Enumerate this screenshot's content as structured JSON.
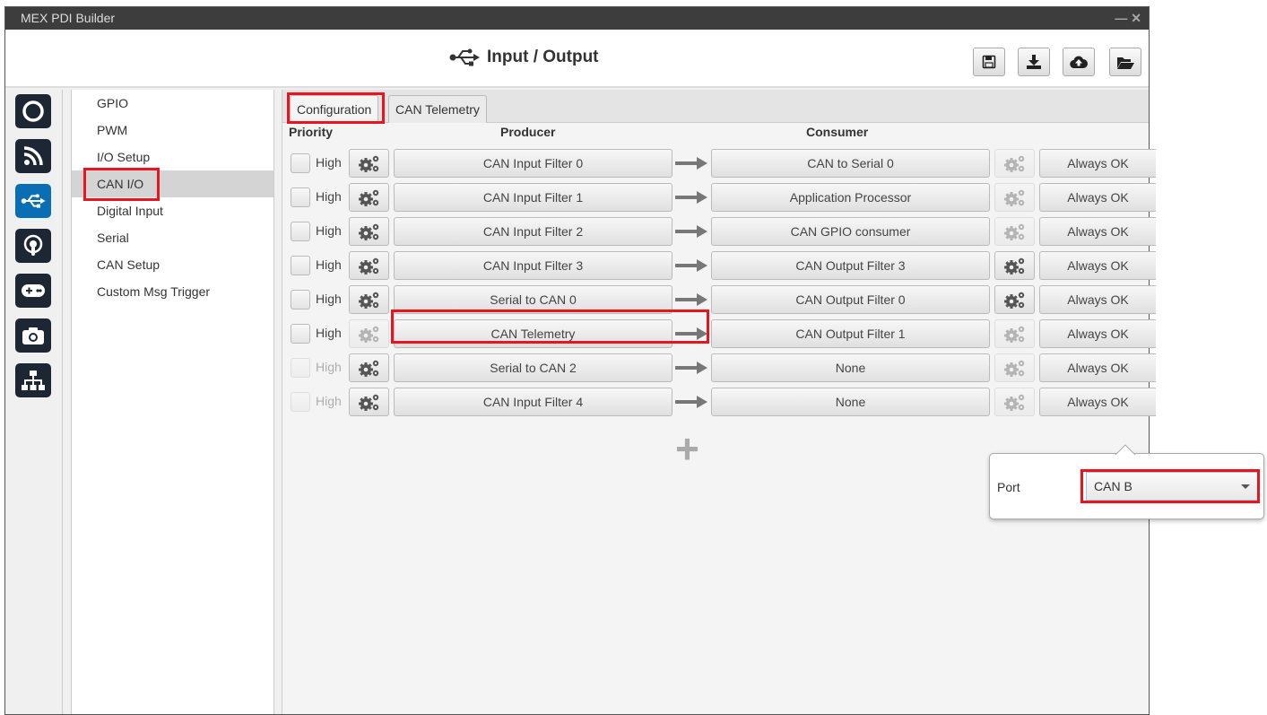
{
  "window": {
    "title": "MEX PDI Builder",
    "controls": "— ✕"
  },
  "header": {
    "title": "Input / Output",
    "icon": "usb-icon",
    "buttons": [
      "save-icon",
      "download-icon",
      "cloud-upload-icon",
      "folder-open-icon"
    ]
  },
  "iconbar": [
    {
      "icon": "power-icon"
    },
    {
      "icon": "rss-icon"
    },
    {
      "icon": "usb-icon",
      "active": true
    },
    {
      "icon": "podcast-icon"
    },
    {
      "icon": "gamepad-icon"
    },
    {
      "icon": "camera-icon"
    },
    {
      "icon": "sitemap-icon"
    }
  ],
  "nav": {
    "items": [
      "GPIO",
      "PWM",
      "I/O Setup",
      "CAN I/O",
      "Digital Input",
      "Serial",
      "CAN Setup",
      "Custom Msg Trigger"
    ],
    "selected": "CAN I/O"
  },
  "tabs": [
    "Configuration",
    "CAN Telemetry"
  ],
  "columns": {
    "priority": "Priority",
    "producer": "Producer",
    "consumer": "Consumer"
  },
  "rows": [
    {
      "priority": "High",
      "producer": "CAN Input Filter 0",
      "consumer": "CAN to Serial 0",
      "status": "Always OK"
    },
    {
      "priority": "High",
      "producer": "CAN Input Filter 1",
      "consumer": "Application Processor",
      "status": "Always OK"
    },
    {
      "priority": "High",
      "producer": "CAN Input Filter 2",
      "consumer": "CAN GPIO consumer",
      "status": "Always OK"
    },
    {
      "priority": "High",
      "producer": "CAN Input Filter 3",
      "consumer": "CAN Output Filter 3",
      "status": "Always OK"
    },
    {
      "priority": "High",
      "producer": "Serial to CAN 0",
      "consumer": "CAN Output Filter 0",
      "status": "Always OK"
    },
    {
      "priority": "High",
      "producer": "CAN Telemetry",
      "consumer": "CAN Output Filter 1",
      "status": "Always OK"
    },
    {
      "priority": "High",
      "producer": "Serial to CAN 2",
      "consumer": "None",
      "status": "Always OK"
    },
    {
      "priority": "High",
      "producer": "CAN Input Filter 4",
      "consumer": "None",
      "status": "Always OK"
    }
  ],
  "popup": {
    "label": "Port",
    "value": "CAN B"
  },
  "colors": {
    "highlight": "#e8141e",
    "accent": "#0a6eb4",
    "icon_bg": "#1c2733"
  }
}
